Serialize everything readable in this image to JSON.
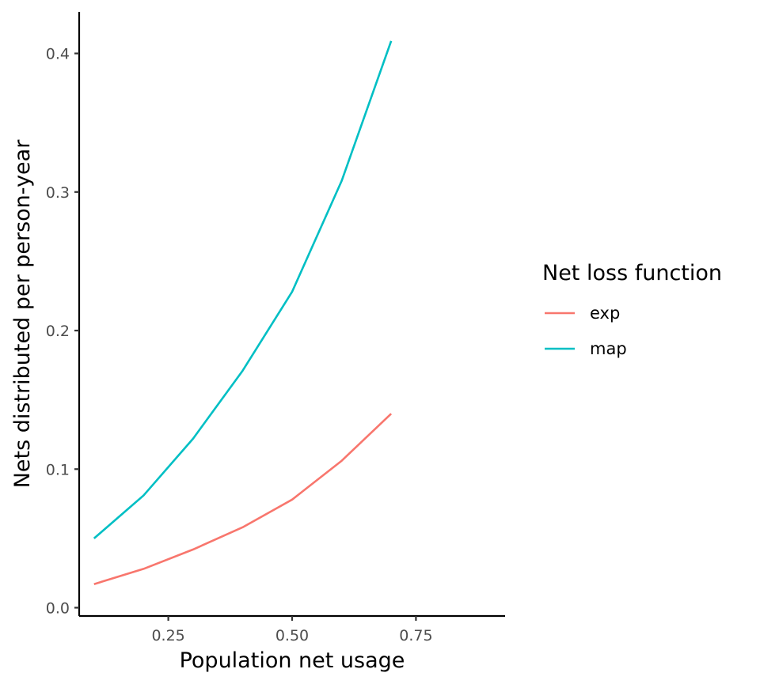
{
  "chart_data": {
    "type": "line",
    "xlabel": "Population net usage",
    "ylabel": "Nets distributed per person-year",
    "xlim": [
      0.07,
      0.93
    ],
    "ylim": [
      -0.006,
      0.43
    ],
    "x_ticks": [
      0.25,
      0.5,
      0.75
    ],
    "x_tick_labels": [
      "0.25",
      "0.50",
      "0.75"
    ],
    "y_ticks": [
      0.0,
      0.1,
      0.2,
      0.3,
      0.4
    ],
    "y_tick_labels": [
      "0.0",
      "0.1",
      "0.2",
      "0.3",
      "0.4"
    ],
    "grid": false,
    "legend": {
      "title": "Net loss function",
      "placement": "right"
    },
    "x": [
      0.1,
      0.2,
      0.3,
      0.4,
      0.5,
      0.6,
      0.7
    ],
    "series": [
      {
        "name": "exp",
        "color": "#F8766D",
        "values": [
          0.017,
          0.028,
          0.042,
          0.058,
          0.078,
          0.106,
          0.14
        ]
      },
      {
        "name": "map",
        "color": "#00BFC4",
        "values": [
          0.05,
          0.081,
          0.122,
          0.171,
          0.228,
          0.308,
          0.409
        ]
      }
    ]
  }
}
